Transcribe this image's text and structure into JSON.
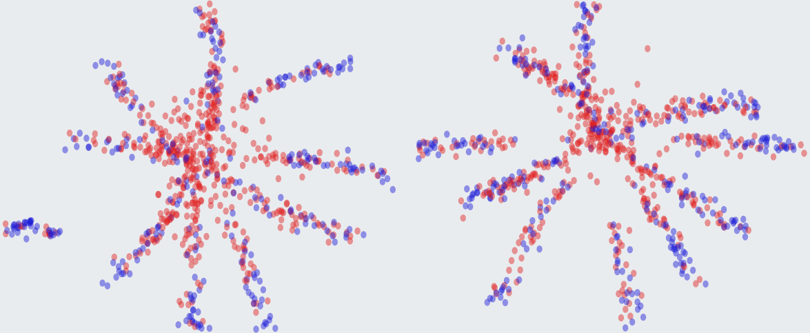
{
  "chart_data": [
    {
      "type": "scatter",
      "title": "",
      "xlabel": "",
      "ylabel": "",
      "xlim": [
        -5.3,
        5.1
      ],
      "ylim": [
        -4.6,
        4.6
      ],
      "grid": false,
      "legend": "none",
      "axes_visible": false,
      "colors": {
        "series_a": "#e01f1f",
        "series_b": "#1a1ad6"
      },
      "marker_opacity": 0.45,
      "center": [
        -0.2,
        0.1
      ],
      "arms": [
        {
          "tip": [
            0.0,
            4.5
          ],
          "count": 95,
          "b_fraction": 0.45,
          "spread": 0.14,
          "curve": -0.35
        },
        {
          "tip": [
            3.7,
            2.8
          ],
          "count": 55,
          "b_fraction": 0.6,
          "spread": 0.12,
          "curve": 0.7,
          "start": 0.35
        },
        {
          "tip": [
            4.9,
            -0.3
          ],
          "count": 70,
          "b_fraction": 0.5,
          "spread": 0.13,
          "curve": 0.3,
          "start": 0.25
        },
        {
          "tip": [
            4.1,
            -2.0
          ],
          "count": 80,
          "b_fraction": 0.35,
          "spread": 0.18,
          "curve": -0.25
        },
        {
          "tip": [
            1.5,
            -4.5
          ],
          "count": 55,
          "b_fraction": 0.5,
          "spread": 0.13,
          "curve": 0.2,
          "start": 0.2
        },
        {
          "tip": [
            -0.3,
            -4.5
          ],
          "count": 65,
          "b_fraction": 0.45,
          "spread": 0.14,
          "curve": -0.1,
          "start": 0.2
        },
        {
          "tip": [
            -2.6,
            -3.2
          ],
          "count": 70,
          "b_fraction": 0.6,
          "spread": 0.16,
          "curve": 0.25
        },
        {
          "tip": [
            -3.7,
            0.7
          ],
          "count": 65,
          "b_fraction": 0.4,
          "spread": 0.14,
          "curve": -0.2
        },
        {
          "tip": [
            -2.5,
            2.8
          ],
          "count": 60,
          "b_fraction": 0.4,
          "spread": 0.15,
          "curve": 0.3
        }
      ],
      "clusters": [
        {
          "center": [
            -4.7,
            -1.6
          ],
          "count": 28,
          "b_fraction": 0.85,
          "spread": [
            0.28,
            0.12
          ],
          "tilt": 0.15
        },
        {
          "center": [
            -3.9,
            -1.8
          ],
          "count": 14,
          "b_fraction": 0.55,
          "spread": [
            0.16,
            0.1
          ],
          "tilt": 0.0
        },
        {
          "center": [
            -0.2,
            0.3
          ],
          "count": 170,
          "b_fraction": 0.1,
          "spread": [
            0.7,
            0.95
          ],
          "tilt": 0.0
        }
      ]
    },
    {
      "type": "scatter",
      "title": "",
      "xlabel": "",
      "ylabel": "",
      "xlim": [
        -5.3,
        5.1
      ],
      "ylim": [
        -4.6,
        4.6
      ],
      "grid": false,
      "legend": "none",
      "axes_visible": false,
      "colors": {
        "series_a": "#e01f1f",
        "series_b": "#1a1ad6"
      },
      "marker_opacity": 0.45,
      "center": [
        -0.3,
        0.9
      ],
      "arms": [
        {
          "tip": [
            -0.5,
            4.5
          ],
          "count": 80,
          "b_fraction": 0.45,
          "spread": 0.14,
          "curve": 0.3
        },
        {
          "tip": [
            -2.8,
            3.3
          ],
          "count": 95,
          "b_fraction": 0.4,
          "spread": 0.2,
          "curve": -0.3
        },
        {
          "tip": [
            3.8,
            1.6
          ],
          "count": 80,
          "b_fraction": 0.45,
          "spread": 0.16,
          "curve": 0.3,
          "start": 0.25
        },
        {
          "tip": [
            5.0,
            0.5
          ],
          "count": 70,
          "b_fraction": 0.5,
          "spread": 0.12,
          "curve": 0.0,
          "start": 0.35
        },
        {
          "tip": [
            3.5,
            -1.8
          ],
          "count": 90,
          "b_fraction": 0.45,
          "spread": 0.17,
          "curve": -0.1
        },
        {
          "tip": [
            2.2,
            -3.2
          ],
          "count": 60,
          "b_fraction": 0.6,
          "spread": 0.14,
          "curve": 0.1,
          "start": 0.3
        },
        {
          "tip": [
            0.6,
            -4.5
          ],
          "count": 45,
          "b_fraction": 0.55,
          "spread": 0.13,
          "curve": 0.0,
          "start": 0.45
        },
        {
          "tip": [
            -3.9,
            -1.0
          ],
          "count": 90,
          "b_fraction": 0.5,
          "spread": 0.18,
          "curve": 0.2,
          "start": 0.15
        },
        {
          "tip": [
            -2.8,
            -3.7
          ],
          "count": 60,
          "b_fraction": 0.5,
          "spread": 0.15,
          "curve": -0.2,
          "start": 0.3
        },
        {
          "tip": [
            -4.9,
            0.5
          ],
          "count": 55,
          "b_fraction": 0.5,
          "spread": 0.14,
          "curve": 0.0,
          "start": 0.45
        }
      ],
      "clusters": [
        {
          "center": [
            -0.2,
            0.9
          ],
          "count": 110,
          "b_fraction": 0.15,
          "spread": [
            0.6,
            0.55
          ],
          "tilt": 0.0
        }
      ]
    }
  ]
}
